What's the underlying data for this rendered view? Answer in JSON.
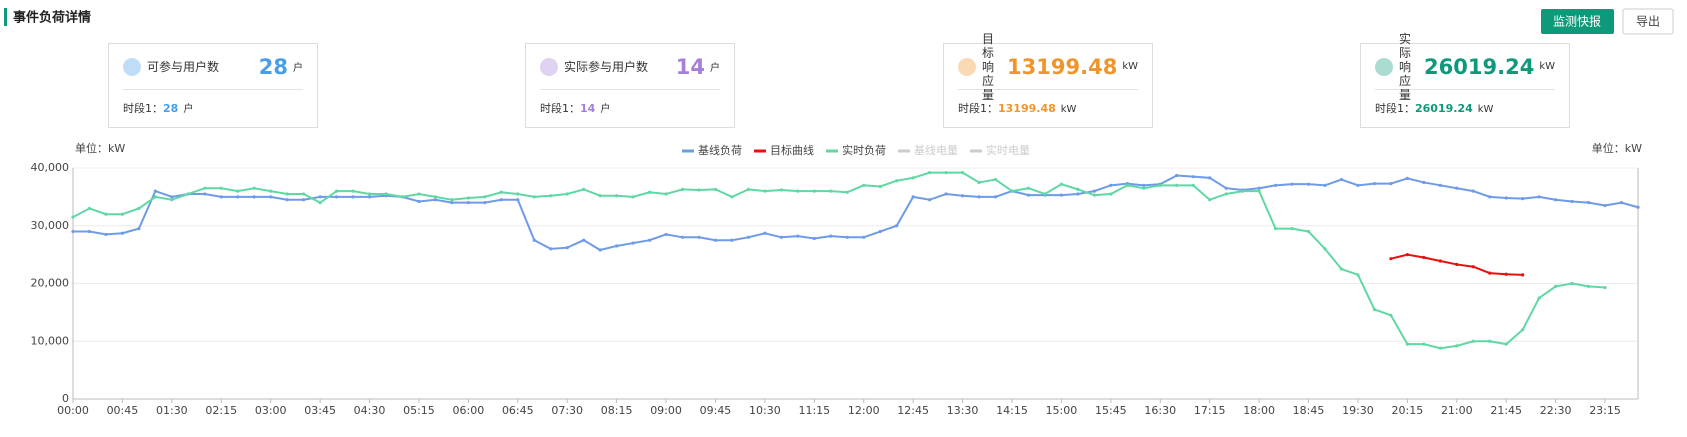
{
  "header": {
    "title": "事件负荷详情",
    "buttons": [
      "监测快报",
      "导出"
    ]
  },
  "cards": [
    {
      "label": "可参与用户数",
      "value": "28",
      "unit": "户",
      "period": "时段1：",
      "period_value": "28",
      "period_unit": "户",
      "color": "#4a9ee8"
    },
    {
      "label": "实际参与用户数",
      "value": "14",
      "unit": "户",
      "period": "时段1：",
      "period_value": "14",
      "period_unit": "户",
      "color": "#a57fd8"
    },
    {
      "label": "目标响应量",
      "value": "13199.48",
      "unit": "kW",
      "period": "时段1：",
      "period_value": "13199.48",
      "period_unit": "kW",
      "color": "#f0952a"
    },
    {
      "label": "实际响应量",
      "value": "26019.24",
      "unit": "kW",
      "period": "时段1：",
      "period_value": "26019.24",
      "period_unit": "kW",
      "color": "#0e9a7a"
    }
  ],
  "chart_data": {
    "type": "line",
    "y_unit_label": "单位：kW",
    "y2_unit_label": "单位：kW",
    "categories": [
      "00:00",
      null,
      null,
      "00:45",
      null,
      null,
      "01:30",
      null,
      null,
      "02:15",
      null,
      null,
      "03:00",
      null,
      null,
      "03:45",
      null,
      null,
      "04:30",
      null,
      null,
      "05:15",
      null,
      null,
      "06:00",
      null,
      null,
      "06:45",
      null,
      null,
      "07:30",
      null,
      null,
      "08:15",
      null,
      null,
      "09:00",
      null,
      null,
      "09:45",
      null,
      null,
      "10:30",
      null,
      null,
      "11:15",
      null,
      null,
      "12:00",
      null,
      null,
      "12:45",
      null,
      null,
      "13:30",
      null,
      null,
      "14:15",
      null,
      null,
      "15:00",
      null,
      null,
      "15:45",
      null,
      null,
      "16:30",
      null,
      null,
      "17:15",
      null,
      null,
      "18:00",
      null,
      null,
      "18:45",
      null,
      null,
      "19:30",
      null,
      null,
      "20:15",
      null,
      null,
      "21:00",
      null,
      null,
      "21:45",
      null,
      null,
      "22:30",
      null,
      null,
      "23:15",
      null,
      null
    ],
    "series": [
      {
        "name": "基线负荷",
        "color": "#6e9be8",
        "values": [
          29000,
          29000,
          28500,
          28700,
          29500,
          36000,
          35000,
          35500,
          35500,
          35000,
          35000,
          35000,
          35000,
          34500,
          34500,
          35000,
          35000,
          35000,
          35000,
          35200,
          35000,
          34200,
          34500,
          34000,
          34000,
          34000,
          34500,
          34500,
          27500,
          26000,
          26200,
          27500,
          25800,
          26500,
          27000,
          27500,
          28500,
          28000,
          28000,
          27500,
          27500,
          28000,
          28700,
          28000,
          28200,
          27800,
          28200,
          28000,
          28000,
          29000,
          30000,
          35000,
          34500,
          35500,
          35200,
          35000,
          35000,
          36000,
          35300,
          35300,
          35300,
          35500,
          36000,
          37000,
          37300,
          37000,
          37200,
          38700,
          38500,
          38300,
          36500,
          36200,
          36500,
          37000,
          37200,
          37200,
          37000,
          38000,
          37000,
          37300,
          37300,
          38200,
          37500,
          37000,
          36500,
          36000,
          35000,
          34800,
          34700,
          35000,
          34500,
          34200,
          34000,
          33500,
          34000,
          33200
        ]
      },
      {
        "name": "目标曲线",
        "color": "#e8100f",
        "values": [
          null,
          null,
          null,
          null,
          null,
          null,
          null,
          null,
          null,
          null,
          null,
          null,
          null,
          null,
          null,
          null,
          null,
          null,
          null,
          null,
          null,
          null,
          null,
          null,
          null,
          null,
          null,
          null,
          null,
          null,
          null,
          null,
          null,
          null,
          null,
          null,
          null,
          null,
          null,
          null,
          null,
          null,
          null,
          null,
          null,
          null,
          null,
          null,
          null,
          null,
          null,
          null,
          null,
          null,
          null,
          null,
          null,
          null,
          null,
          null,
          null,
          null,
          null,
          null,
          null,
          null,
          null,
          null,
          null,
          null,
          null,
          null,
          null,
          null,
          null,
          null,
          null,
          null,
          null,
          null,
          24300,
          25000,
          24500,
          23900,
          23300,
          22900,
          21800,
          21600,
          21500,
          null,
          null,
          null,
          null,
          null,
          null,
          null
        ]
      },
      {
        "name": "实时负荷",
        "color": "#5fd8a4",
        "values": [
          31500,
          33000,
          32000,
          32000,
          33000,
          35000,
          34500,
          35500,
          36500,
          36500,
          36000,
          36500,
          36000,
          35500,
          35500,
          34000,
          36000,
          36000,
          35500,
          35500,
          35000,
          35500,
          35000,
          34500,
          34800,
          35000,
          35800,
          35500,
          35000,
          35200,
          35500,
          36300,
          35200,
          35200,
          35000,
          35800,
          35500,
          36300,
          36200,
          36300,
          35000,
          36300,
          36000,
          36200,
          36000,
          36000,
          36000,
          35800,
          37000,
          36800,
          37800,
          38300,
          39200,
          39200,
          39200,
          37500,
          38000,
          36000,
          36500,
          35500,
          37200,
          36300,
          35300,
          35500,
          37000,
          36500,
          37000,
          37000,
          37000,
          34500,
          35500,
          36000,
          36000,
          29500,
          29500,
          29000,
          26000,
          22500,
          21500,
          15500,
          14500,
          9500,
          9500,
          8800,
          9200,
          10000,
          10000,
          9500,
          12000,
          17500,
          19500,
          20000,
          19500,
          19300,
          null,
          null
        ]
      }
    ],
    "inactive_legend": [
      "基线电量",
      "实时电量"
    ],
    "inactive_color": "#cccccc",
    "ylim": [
      0,
      40000
    ],
    "yticks": [
      0,
      {
        "value": 10000,
        "label": "10,000"
      },
      {
        "value": 20000,
        "label": "20,000"
      },
      {
        "value": 30000,
        "label": "30,000"
      },
      {
        "value": 40000,
        "label": "40,000"
      }
    ],
    "grid": true
  }
}
